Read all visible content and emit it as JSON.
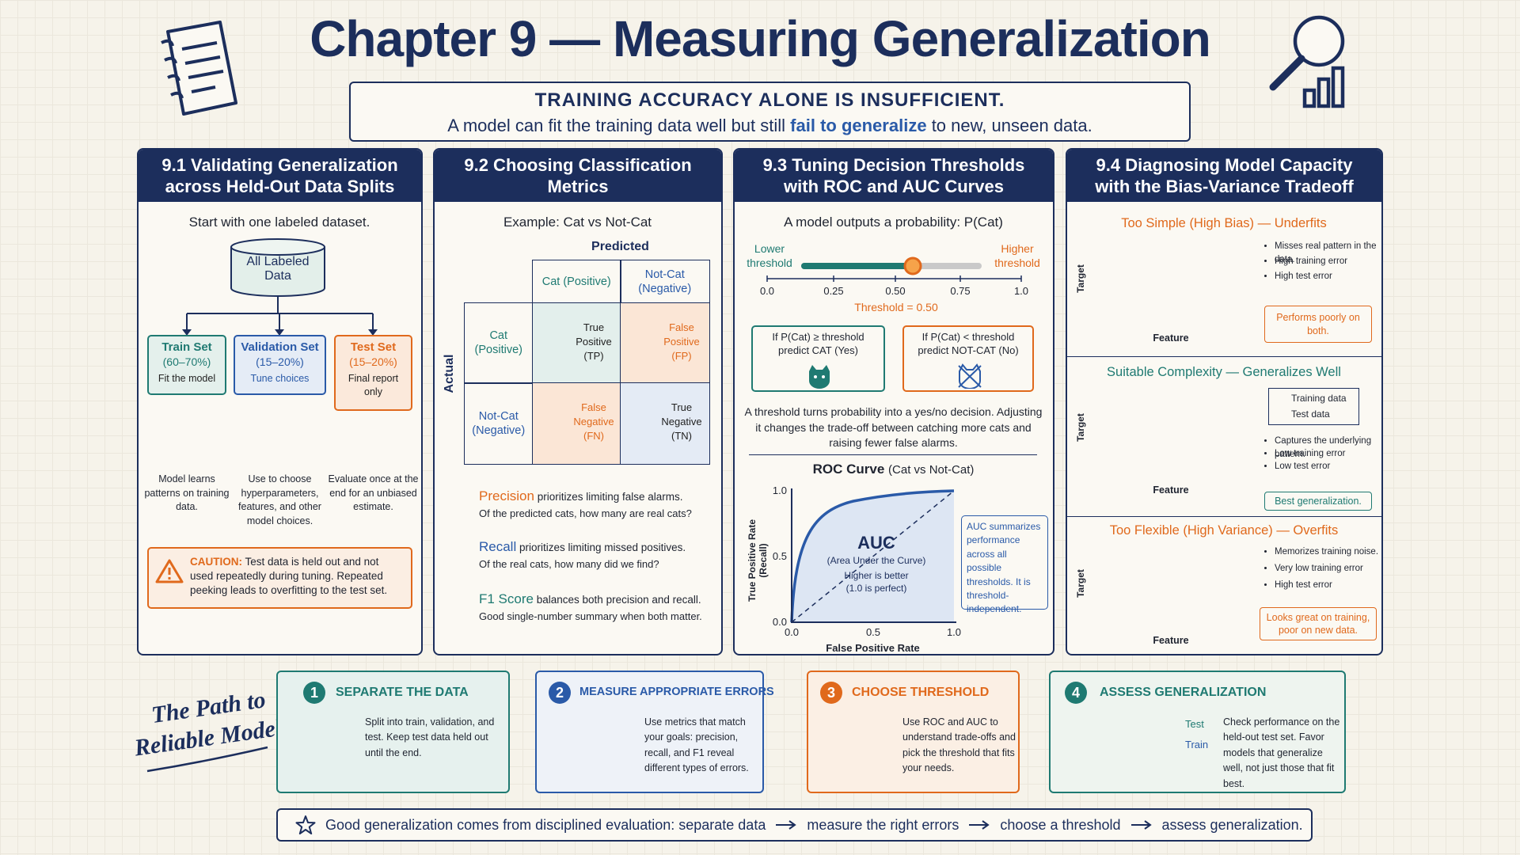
{
  "header": {
    "title": "Chapter 9 — Measuring Generalization",
    "subtitle_heading": "TRAINING ACCURACY ALONE IS INSUFFICIENT.",
    "subtitle_before": "A model can fit the training data well but still",
    "subtitle_highlight": "fail to generalize",
    "subtitle_after": "to new, unseen data."
  },
  "panels": [
    {
      "title": "9.1 Validating Generalization across Held-Out Data Splits",
      "intro": "Start with one labeled dataset.",
      "dataset": "All Labeled Data",
      "splits": [
        {
          "name": "Train Set",
          "share": "(60–70%)",
          "role": "Fit the model",
          "description": "Model learns patterns on training data."
        },
        {
          "name": "Validation Set",
          "share": "(15–20%)",
          "role": "Tune choices",
          "description": "Use to choose hyperparameters, features, and other model choices."
        },
        {
          "name": "Test Set",
          "share": "(15–20%)",
          "role": "Final report only",
          "description": "Evaluate once at the end for an unbiased estimate."
        }
      ],
      "caution_label": "CAUTION:",
      "caution_text": "Test data is held out and not used repeatedly during tuning. Repeated peeking leads to overfitting to the test set."
    },
    {
      "title": "9.2 Choosing Classification Metrics",
      "example": "Example: Cat vs Not-Cat",
      "predicted": "Predicted",
      "actual": "Actual",
      "classes": [
        "Cat (Positive)",
        "Not-Cat (Negative)"
      ],
      "cells": [
        [
          "True Positive (TP)",
          "False Positive (FP)"
        ],
        [
          "False Negative (FN)",
          "True Negative (TN)"
        ]
      ],
      "metrics": [
        {
          "name": "Precision",
          "text": "prioritizes limiting false alarms.",
          "detail": "Of the predicted cats, how many are real cats?"
        },
        {
          "name": "Recall",
          "text": "prioritizes limiting missed positives.",
          "detail": "Of the real cats, how many did we find?"
        },
        {
          "name": "F1 Score",
          "text": "balances both precision and recall.",
          "detail": "Good single-number summary when both matter."
        }
      ]
    },
    {
      "title": "9.3 Tuning Decision Thresholds with ROC and AUC Curves",
      "intro": "A model outputs a probability: P(Cat)",
      "lower": "Lower threshold",
      "higher": "Higher threshold",
      "scale": [
        "0.0",
        "0.25",
        "0.50",
        "0.75",
        "1.0"
      ],
      "threshold": "Threshold = 0.50",
      "rule_yes": "If P(Cat) ≥ threshold predict CAT (Yes)",
      "rule_no": "If P(Cat) < threshold predict NOT-CAT (No)",
      "explanation": "A threshold turns probability into a yes/no decision. Adjusting it changes the trade-off between catching more cats and raising fewer false alarms.",
      "roc_title": "ROC Curve",
      "roc_subtitle": "(Cat vs Not-Cat)",
      "y_label": "True Positive Rate (Recall)",
      "x_label": "False Positive Rate",
      "y_ticks": [
        "1.0",
        "0.5",
        "0.0"
      ],
      "x_ticks": [
        "0.0",
        "0.5",
        "1.0"
      ],
      "auc": "AUC",
      "auc_full": "(Area Under the Curve)",
      "auc_note": "Higher is better (1.0 is perfect)",
      "auc_summary": "AUC summarizes performance across all possible thresholds. It is threshold-independent."
    },
    {
      "title": "9.4 Diagnosing Model Capacity with the Bias-Variance Tradeoff",
      "x_label": "Feature",
      "y_label": "Target",
      "legend": [
        "Training data",
        "Test data"
      ],
      "cases": [
        {
          "heading": "Too Simple (High Bias) — Underfits",
          "points": [
            "Misses real pattern in the data.",
            "High training error",
            "High test error"
          ],
          "verdict": "Performs poorly on both."
        },
        {
          "heading": "Suitable Complexity — Generalizes Well",
          "points": [
            "Captures the underlying pattern.",
            "Low training error",
            "Low test error"
          ],
          "verdict": "Best generalization."
        },
        {
          "heading": "Too Flexible (High Variance) — Overfits",
          "points": [
            "Memorizes training noise.",
            "Very low training error",
            "High test error"
          ],
          "verdict": "Looks great on training, poor on new data."
        }
      ]
    }
  ],
  "path_title": "The Path to Reliable Models",
  "steps": [
    {
      "number": 1,
      "title": "SEPARATE THE DATA",
      "text": "Split into train, validation, and test. Keep test data held out until the end."
    },
    {
      "number": 2,
      "title": "MEASURE APPROPRIATE ERRORS",
      "text": "Use metrics that match your goals: precision, recall, and F1 reveal different types of errors."
    },
    {
      "number": 3,
      "title": "CHOOSE THRESHOLD",
      "text": "Use ROC and AUC to understand trade-offs and pick the threshold that fits your needs."
    },
    {
      "number": 4,
      "title": "ASSESS GENERALIZATION",
      "text": "Check performance on the held-out test set. Favor models that generalize well, not just those that fit best.",
      "legend": [
        "Test",
        "Train"
      ]
    }
  ],
  "footer": {
    "start": "Good generalization comes from disciplined evaluation: separate data",
    "steps": [
      "measure the right errors",
      "choose a threshold",
      "assess generalization."
    ]
  }
}
